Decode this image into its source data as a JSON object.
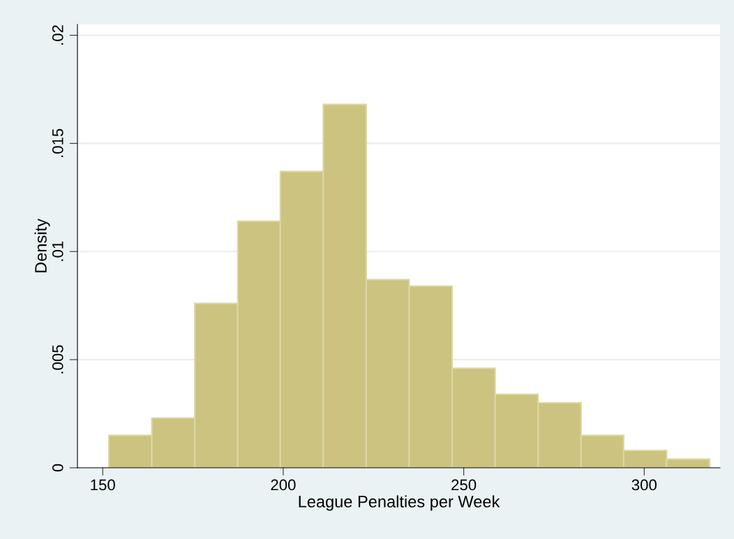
{
  "chart_data": {
    "type": "histogram",
    "xlabel": "League Penalties per Week",
    "ylabel": "Density",
    "bins": [
      151.7,
      163.6,
      175.5,
      187.4,
      199.2,
      211.1,
      223.0,
      234.9,
      246.8,
      258.7,
      270.6,
      282.5,
      294.3,
      306.2,
      318.1
    ],
    "values": [
      0.0015,
      0.0023,
      0.0076,
      0.0114,
      0.0137,
      0.0168,
      0.0087,
      0.0084,
      0.0046,
      0.0034,
      0.003,
      0.0015,
      0.0008,
      0.0004
    ],
    "color": "#cbc37f",
    "xlim": [
      143,
      321
    ],
    "xticks": [
      150,
      200,
      250,
      300
    ],
    "ylim": [
      0,
      0.0205
    ],
    "yticks": [
      {
        "value": 0,
        "label": "0"
      },
      {
        "value": 0.005,
        "label": ".005"
      },
      {
        "value": 0.01,
        "label": ".01"
      },
      {
        "value": 0.015,
        "label": ".015"
      },
      {
        "value": 0.02,
        "label": ".02"
      }
    ],
    "grid": "y",
    "legend": false
  }
}
